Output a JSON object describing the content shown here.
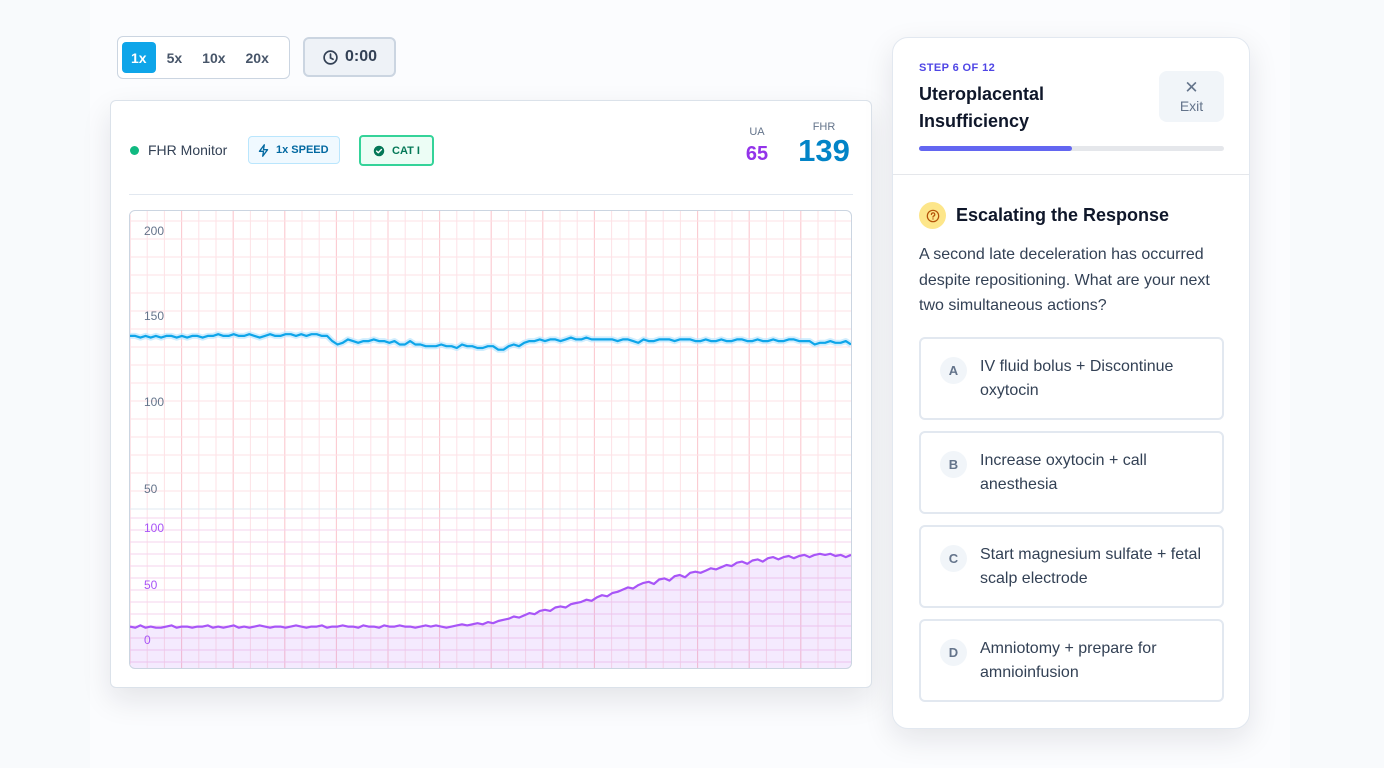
{
  "playback": {
    "speeds": [
      "1x",
      "5x",
      "10x",
      "20x"
    ],
    "active_speed": "1x",
    "timer": "0:00"
  },
  "monitor": {
    "title": "FHR Monitor",
    "speed_badge": "1x SPEED",
    "category_badge": "CAT I",
    "ua": {
      "label": "UA",
      "value": "65"
    },
    "fhr": {
      "label": "FHR",
      "value": "139"
    },
    "colors": {
      "fhr": "#0ea5e9",
      "ua": "#a855f7",
      "status": "#10b981"
    }
  },
  "chart_data": {
    "type": "line",
    "panels": [
      {
        "name": "FHR",
        "y_ticks": [
          "200",
          "150",
          "100",
          "50"
        ],
        "ylim": [
          50,
          200
        ],
        "series": [
          {
            "values": [
              139,
              139,
              138,
              139,
              138,
              139,
              138,
              139,
              139,
              138,
              139,
              138,
              139,
              139,
              138,
              139,
              139,
              140,
              139,
              139,
              140,
              139,
              139,
              140,
              139,
              138,
              139,
              140,
              139,
              139,
              140,
              140,
              139,
              140,
              139,
              140,
              140,
              139,
              139,
              136,
              134,
              135,
              137,
              136,
              135,
              136,
              136,
              137,
              136,
              136,
              135,
              136,
              134,
              134,
              136,
              134,
              134,
              133,
              133,
              133,
              134,
              133,
              133,
              132,
              134,
              133,
              133,
              132,
              132,
              133,
              133,
              131,
              131,
              133,
              134,
              133,
              135,
              136,
              136,
              137,
              136,
              137,
              137,
              136,
              137,
              138,
              137,
              137,
              138,
              137,
              137,
              137,
              137,
              137,
              136,
              137,
              137,
              136,
              135,
              137,
              136,
              136,
              137,
              137,
              137,
              136,
              137,
              137,
              137,
              136,
              136,
              137,
              136,
              136,
              137,
              136,
              136,
              137,
              137,
              136,
              136,
              137,
              136,
              136,
              137,
              136,
              136,
              137,
              137,
              136,
              136,
              136,
              134,
              135,
              135,
              136,
              135,
              135,
              136,
              134
            ]
          }
        ]
      },
      {
        "name": "UA",
        "y_ticks": [
          "100",
          "50",
          "0"
        ],
        "ylim": [
          0,
          100
        ],
        "series": [
          {
            "values": [
              12,
              11,
              13,
              11,
              12,
              11,
              11,
              12,
              13,
              11,
              12,
              12,
              11,
              12,
              12,
              13,
              11,
              12,
              11,
              12,
              13,
              11,
              12,
              11,
              12,
              13,
              12,
              11,
              12,
              12,
              11,
              12,
              13,
              12,
              11,
              12,
              12,
              13,
              11,
              12,
              12,
              13,
              12,
              12,
              11,
              13,
              12,
              12,
              11,
              13,
              12,
              12,
              13,
              12,
              12,
              11,
              12,
              13,
              12,
              13,
              12,
              11,
              12,
              13,
              14,
              13,
              14,
              15,
              14,
              16,
              15,
              17,
              18,
              19,
              21,
              20,
              22,
              24,
              23,
              26,
              27,
              26,
              29,
              30,
              29,
              32,
              33,
              34,
              36,
              35,
              38,
              40,
              39,
              42,
              43,
              45,
              47,
              46,
              49,
              51,
              52,
              50,
              54,
              55,
              53,
              57,
              58,
              56,
              60,
              61,
              60,
              62,
              64,
              63,
              65,
              67,
              66,
              69,
              70,
              68,
              71,
              72,
              70,
              73,
              74,
              72,
              74,
              75,
              73,
              75,
              76,
              74,
              76,
              77,
              76,
              77,
              75,
              76,
              74,
              76
            ]
          }
        ]
      }
    ]
  },
  "scenario": {
    "step": "STEP 6 OF 12",
    "title": "Uteroplacental Insufficiency",
    "exit_label": "Exit",
    "progress_fraction": 0.5
  },
  "question": {
    "title": "Escalating the Response",
    "text": "A second late deceleration has occurred despite repositioning. What are your next two simultaneous actions?",
    "options": [
      {
        "letter": "A",
        "text": "IV fluid bolus + Discontinue oxytocin"
      },
      {
        "letter": "B",
        "text": "Increase oxytocin + call anesthesia"
      },
      {
        "letter": "C",
        "text": "Start magnesium sulfate + fetal scalp electrode"
      },
      {
        "letter": "D",
        "text": "Amniotomy + prepare for amnioinfusion"
      }
    ]
  }
}
